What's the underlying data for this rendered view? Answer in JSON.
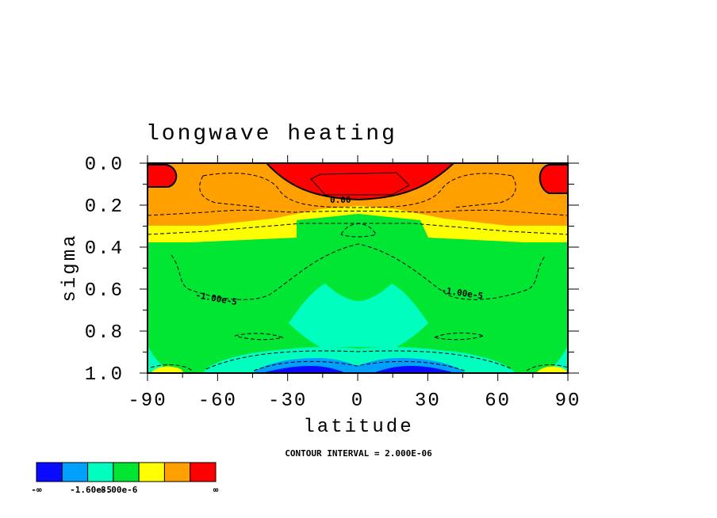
{
  "chart_data": {
    "type": "contour",
    "title": "longwave heating",
    "xlabel": "latitude",
    "ylabel": "sigma",
    "xlim": [
      -90,
      90
    ],
    "ylim": [
      1.0,
      0.0
    ],
    "x_ticks": [
      "-90",
      "-60",
      "-30",
      "0",
      "30",
      "60",
      "90"
    ],
    "y_ticks": [
      "0.0",
      "0.2",
      "0.4",
      "0.6",
      "0.8",
      "1.0"
    ],
    "contour_labels": [
      "0.00",
      "-1.00e-5",
      "-1.00e-5"
    ],
    "footer": "CONTOUR INTERVAL = 2.000E-06",
    "colorbar": {
      "colors": [
        "#0a0aff",
        "#00a0ff",
        "#00ffbe",
        "#00e632",
        "#ffff00",
        "#ffa000",
        "#ff0000"
      ],
      "labels": [
        "-∞",
        "-1.60e-5",
        "-8.00e-6",
        "∞"
      ]
    }
  }
}
